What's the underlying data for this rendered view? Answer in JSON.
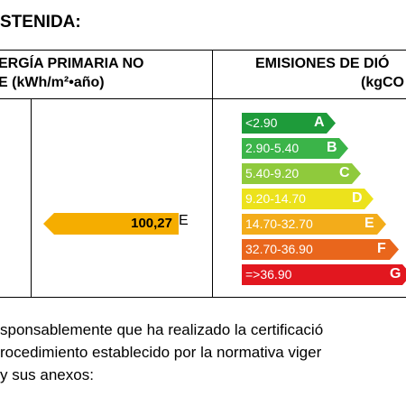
{
  "heading": "STENIDA:",
  "table": {
    "left_header_line1": "ERGÍA PRIMARIA NO",
    "left_header_line2": "E (kWh/m²•año)",
    "right_header_line1": "EMISIONES DE DIÓ",
    "right_header_line2": "(kgCO"
  },
  "energy_marker": {
    "value": "100,27",
    "letter": "E",
    "color": "#f5ad00"
  },
  "emission_scale": [
    {
      "range": "<2.90",
      "letter": "A",
      "color": "#1e9b3a"
    },
    {
      "range": "2.90-5.40",
      "letter": "B",
      "color": "#3bb449"
    },
    {
      "range": "5.40-9.20",
      "letter": "C",
      "color": "#8fca3c"
    },
    {
      "range": "9.20-14.70",
      "letter": "D",
      "color": "#ece21c"
    },
    {
      "range": "14.70-32.70",
      "letter": "E",
      "color": "#f3ac1a"
    },
    {
      "range": "32.70-36.90",
      "letter": "F",
      "color": "#e9661c"
    },
    {
      "range": "=>36.90",
      "letter": "G",
      "color": "#e2171f"
    }
  ],
  "paragraph": [
    "sponsablemente que ha realizado la certificació",
    "rocedimiento establecido por la normativa viger",
    "y sus anexos:"
  ]
}
